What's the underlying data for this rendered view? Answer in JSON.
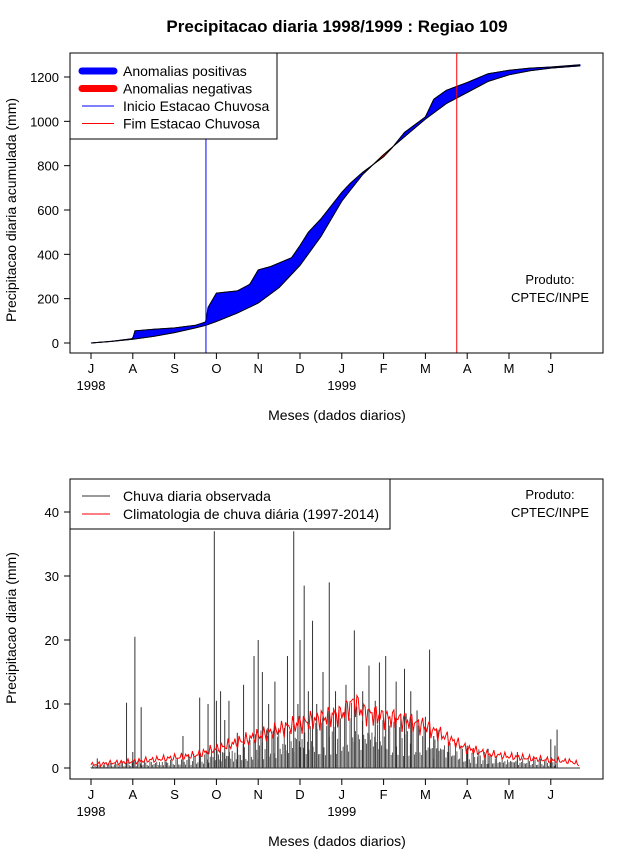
{
  "title": "Precipitacao diaria 1998/1999 : Regiao 109",
  "chart_data": [
    {
      "type": "area",
      "name": "cumulative",
      "xlabel": "Meses (dados diarios)",
      "ylabel": "Precipitacao diaria acumulada (mm)",
      "ylim": [
        0,
        1300
      ],
      "yticks": [
        0,
        200,
        400,
        600,
        800,
        1000,
        1200
      ],
      "month_ticks": [
        "J",
        "A",
        "S",
        "O",
        "N",
        "D",
        "J",
        "F",
        "M",
        "A",
        "M",
        "J"
      ],
      "year_labels": [
        "1998",
        "1999"
      ],
      "legend": {
        "position": "top-left",
        "entries": [
          {
            "label": "Anomalias positivas",
            "color": "#0000ff",
            "style": "thick"
          },
          {
            "label": "Anomalias negativas",
            "color": "#ff0000",
            "style": "thick"
          },
          {
            "label": "Inicio Estacao Chuvosa",
            "color": "#0000ff",
            "style": "line"
          },
          {
            "label": "Fim Estacao Chuvosa",
            "color": "#ff0000",
            "style": "line"
          }
        ]
      },
      "annotation": [
        "Produto:",
        "CPTEC/INPE"
      ],
      "rainy_season_start_month": 2.75,
      "rainy_season_end_month": 8.75,
      "observed_months": [
        0,
        0.5,
        1.0,
        1.05,
        1.5,
        2.0,
        2.5,
        2.75,
        2.8,
        3.0,
        3.5,
        3.8,
        4.0,
        4.3,
        4.8,
        5.0,
        5.2,
        5.5,
        6.0,
        6.2,
        6.5,
        7.0,
        7.2,
        7.5,
        8.0,
        8.2,
        8.5,
        9.0,
        9.5,
        10.0,
        10.5,
        11.0,
        11.7
      ],
      "observed_values": [
        0,
        8,
        20,
        55,
        62,
        68,
        80,
        95,
        160,
        225,
        235,
        265,
        330,
        345,
        385,
        440,
        500,
        560,
        680,
        720,
        770,
        840,
        880,
        950,
        1020,
        1100,
        1140,
        1175,
        1215,
        1230,
        1240,
        1245,
        1255
      ],
      "climatology_months": [
        0,
        0.5,
        1.0,
        1.5,
        2.0,
        2.5,
        2.75,
        3.0,
        3.5,
        4.0,
        4.5,
        5.0,
        5.5,
        6.0,
        6.5,
        7.0,
        7.5,
        8.0,
        8.5,
        9.0,
        9.5,
        10.0,
        10.5,
        11.0,
        11.7
      ],
      "climatology_values": [
        0,
        7,
        17,
        30,
        47,
        68,
        80,
        97,
        135,
        180,
        250,
        350,
        480,
        640,
        760,
        850,
        930,
        1010,
        1080,
        1130,
        1180,
        1210,
        1228,
        1240,
        1250
      ]
    },
    {
      "type": "bar",
      "name": "daily",
      "xlabel": "Meses (dados diarios)",
      "ylabel": "Precipitacao diaria (mm)",
      "ylim": [
        0,
        44
      ],
      "yticks": [
        0,
        10,
        20,
        30,
        40
      ],
      "month_ticks": [
        "J",
        "A",
        "S",
        "O",
        "N",
        "D",
        "J",
        "F",
        "M",
        "A",
        "M",
        "J"
      ],
      "year_labels": [
        "1998",
        "1999"
      ],
      "legend": {
        "position": "top-left",
        "entries": [
          {
            "label": "Chuva diaria observada",
            "color": "#333333"
          },
          {
            "label": "Climatologia de chuva diária (1997-2014)",
            "color": "#ff0000"
          }
        ]
      },
      "annotation": [
        "Produto:",
        "CPTEC/INPE"
      ],
      "observed_days": [
        0.15,
        0.85,
        1.0,
        1.05,
        1.2,
        1.8,
        2.2,
        2.6,
        2.8,
        2.95,
        3.0,
        3.1,
        3.2,
        3.3,
        3.5,
        3.65,
        3.9,
        4.0,
        4.1,
        4.25,
        4.4,
        4.7,
        4.85,
        4.95,
        5.0,
        5.1,
        5.2,
        5.3,
        5.4,
        5.55,
        5.7,
        5.85,
        6.1,
        6.3,
        6.5,
        6.65,
        6.8,
        6.9,
        7.05,
        7.3,
        7.5,
        7.65,
        7.8,
        8.0,
        8.1,
        8.2,
        8.3,
        8.55,
        9.0,
        9.5,
        10.2,
        11.0,
        11.1,
        11.15
      ],
      "observed_values": [
        1.5,
        10.2,
        2.5,
        20.5,
        9.5,
        1.0,
        5.0,
        11.0,
        10.0,
        37.0,
        10.5,
        12.0,
        7.5,
        10.5,
        5.5,
        13.0,
        17.5,
        20.0,
        15.0,
        10.0,
        13.5,
        17.5,
        37.0,
        10.0,
        20.0,
        28.5,
        12.0,
        23.0,
        10.0,
        15.0,
        29.0,
        12.0,
        13.0,
        21.5,
        12.0,
        16.0,
        10.5,
        16.5,
        17.5,
        13.5,
        15.5,
        12.0,
        9.0,
        8.0,
        18.5,
        5.0,
        6.0,
        4.0,
        3.5,
        3.0,
        2.5,
        4.5,
        3.5,
        6.0
      ],
      "climatology_months": [
        0,
        0.5,
        1.0,
        1.5,
        2.0,
        2.5,
        3.0,
        3.5,
        4.0,
        4.5,
        5.0,
        5.5,
        6.0,
        6.3,
        6.5,
        7.0,
        7.5,
        8.0,
        8.5,
        9.0,
        9.5,
        10.0,
        10.5,
        11.0,
        11.5,
        11.7
      ],
      "climatology_values": [
        0.5,
        0.8,
        1.0,
        1.3,
        1.6,
        2.0,
        3.0,
        4.0,
        5.0,
        6.0,
        7.0,
        7.8,
        8.5,
        10.5,
        8.8,
        8.0,
        7.5,
        6.5,
        4.8,
        3.0,
        2.2,
        1.8,
        1.5,
        1.2,
        1.0,
        0.5
      ]
    }
  ]
}
